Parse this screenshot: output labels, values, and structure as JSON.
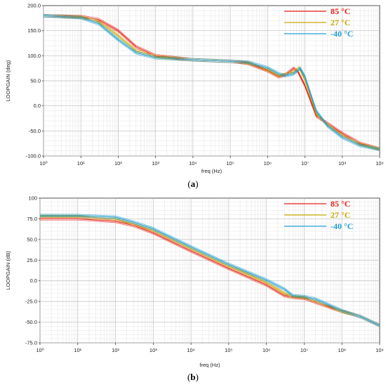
{
  "chart_data": [
    {
      "type": "line",
      "caption": "(a)",
      "xlabel": "freq (Hz)",
      "ylabel": "LOOPGAIN (deg)",
      "xscale": "log",
      "xlim": [
        1,
        1000000000
      ],
      "ylim": [
        -100,
        200
      ],
      "yticks": [
        "200.0",
        "150.0",
        "100.0",
        "50.0",
        "0.0",
        "-50.0",
        "-100.0"
      ],
      "xticks": [
        "10⁰",
        "10¹",
        "10²",
        "10³",
        "10⁴",
        "10⁵",
        "10⁶",
        "10⁷",
        "10⁸",
        "10⁹"
      ],
      "grid": true,
      "legend_position": "top-right",
      "series": [
        {
          "name": "85 °C",
          "color": "#e8201a",
          "x": [
            1,
            10,
            30,
            100,
            300,
            1000,
            10000,
            100000,
            300000,
            1000000,
            2000000,
            3000000,
            5000000,
            6500000,
            10000000,
            20000000,
            40000000,
            100000000,
            300000000,
            1000000000
          ],
          "y": [
            180,
            178,
            172,
            150,
            118,
            100,
            92,
            89,
            85,
            70,
            58,
            62,
            75,
            68,
            40,
            -20,
            -35,
            -55,
            -75,
            -86
          ]
        },
        {
          "name": "27 °C",
          "color": "#c8a800",
          "x": [
            1,
            10,
            30,
            100,
            300,
            1000,
            10000,
            100000,
            300000,
            1000000,
            2000000,
            3000000,
            5000000,
            7000000,
            10000000,
            20000000,
            40000000,
            100000000,
            300000000,
            1000000000
          ],
          "y": [
            180,
            177,
            168,
            140,
            110,
            98,
            92,
            89,
            86,
            72,
            60,
            63,
            68,
            76,
            52,
            -15,
            -38,
            -60,
            -77,
            -86
          ]
        },
        {
          "name": "-40 °C",
          "color": "#1f9fd6",
          "x": [
            1,
            10,
            30,
            100,
            300,
            1000,
            10000,
            100000,
            300000,
            1000000,
            2000000,
            3000000,
            5000000,
            7500000,
            10000000,
            20000000,
            40000000,
            100000000,
            300000000,
            1000000000
          ],
          "y": [
            180,
            176,
            164,
            132,
            106,
            96,
            92,
            89,
            87,
            76,
            64,
            60,
            64,
            75,
            58,
            -10,
            -40,
            -63,
            -79,
            -87
          ]
        }
      ]
    },
    {
      "type": "line",
      "caption": "(b)",
      "xlabel": "freq (Hz)",
      "ylabel": "LOOPGAIN (dB)",
      "xscale": "log",
      "xlim": [
        1,
        1000000000
      ],
      "ylim": [
        -75,
        100
      ],
      "yticks": [
        "100",
        "75.0",
        "50.0",
        "25.0",
        "0.0",
        "-25.0",
        "-50.0",
        "-75.0"
      ],
      "xticks": [
        "10⁰",
        "10¹",
        "10²",
        "10³",
        "10⁴",
        "10⁵",
        "10⁶",
        "10⁷",
        "10⁸",
        "10⁹"
      ],
      "grid": true,
      "legend_position": "top-right",
      "series": [
        {
          "name": "85 °C",
          "color": "#e8201a",
          "x": [
            1,
            10,
            100,
            300,
            1000,
            10000,
            100000,
            1000000,
            3000000,
            5000000,
            10000000,
            20000000,
            100000000,
            300000000,
            1000000000
          ],
          "y": [
            75,
            75,
            72,
            67,
            58,
            36,
            15,
            -5,
            -18,
            -20,
            -21,
            -26,
            -37,
            -43,
            -54
          ]
        },
        {
          "name": "27 °C",
          "color": "#c8a800",
          "x": [
            1,
            10,
            100,
            300,
            1000,
            10000,
            100000,
            1000000,
            3000000,
            5000000,
            10000000,
            20000000,
            100000000,
            300000000,
            1000000000
          ],
          "y": [
            78,
            78,
            75,
            69,
            61,
            39,
            18,
            -2,
            -15,
            -19,
            -20,
            -24,
            -37,
            -43,
            -54
          ]
        },
        {
          "name": "-40 °C",
          "color": "#1f9fd6",
          "x": [
            1,
            10,
            100,
            300,
            1000,
            10000,
            100000,
            1000000,
            3000000,
            5000000,
            10000000,
            20000000,
            100000000,
            300000000,
            1000000000
          ],
          "y": [
            79,
            79,
            77,
            71,
            63,
            41,
            20,
            1,
            -10,
            -18,
            -19,
            -22,
            -36,
            -43,
            -54
          ]
        }
      ]
    }
  ]
}
